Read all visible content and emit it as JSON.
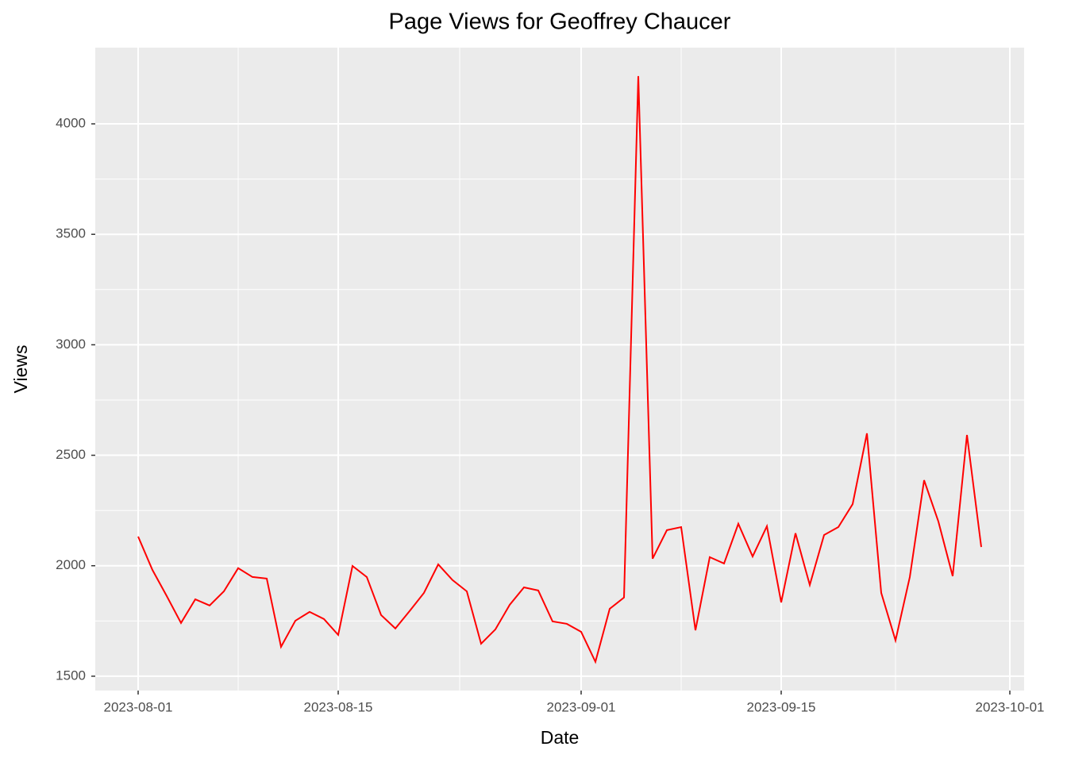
{
  "chart_data": {
    "type": "line",
    "title": "Page Views for Geoffrey Chaucer",
    "x_label": "Date",
    "y_label": "Views",
    "x": [
      "2023-08-01",
      "2023-08-02",
      "2023-08-03",
      "2023-08-04",
      "2023-08-05",
      "2023-08-06",
      "2023-08-07",
      "2023-08-08",
      "2023-08-09",
      "2023-08-10",
      "2023-08-11",
      "2023-08-12",
      "2023-08-13",
      "2023-08-14",
      "2023-08-15",
      "2023-08-16",
      "2023-08-17",
      "2023-08-18",
      "2023-08-19",
      "2023-08-20",
      "2023-08-21",
      "2023-08-22",
      "2023-08-23",
      "2023-08-24",
      "2023-08-25",
      "2023-08-26",
      "2023-08-27",
      "2023-08-28",
      "2023-08-29",
      "2023-08-30",
      "2023-08-31",
      "2023-09-01",
      "2023-09-02",
      "2023-09-03",
      "2023-09-04",
      "2023-09-05",
      "2023-09-06",
      "2023-09-07",
      "2023-09-08",
      "2023-09-09",
      "2023-09-10",
      "2023-09-11",
      "2023-09-12",
      "2023-09-13",
      "2023-09-14",
      "2023-09-15",
      "2023-09-16",
      "2023-09-17",
      "2023-09-18",
      "2023-09-19",
      "2023-09-20",
      "2023-09-21",
      "2023-09-22",
      "2023-09-23",
      "2023-09-24",
      "2023-09-25",
      "2023-09-26",
      "2023-09-27",
      "2023-09-28",
      "2023-09-29"
    ],
    "series": [
      {
        "name": "Views",
        "color": "#ff0000",
        "values": [
          2132,
          1981,
          1863,
          1741,
          1848,
          1820,
          1884,
          1989,
          1949,
          1942,
          1633,
          1751,
          1791,
          1759,
          1687,
          1999,
          1949,
          1777,
          1716,
          1795,
          1877,
          2006,
          1935,
          1884,
          1647,
          1712,
          1823,
          1902,
          1888,
          1748,
          1737,
          1701,
          1565,
          1805,
          1856,
          4216,
          2032,
          2161,
          2175,
          1708,
          2039,
          2010,
          2190,
          2042,
          2179,
          1834,
          2147,
          1913,
          2139,
          2175,
          2279,
          2599,
          1877,
          1662,
          1949,
          2387,
          2200,
          1953,
          2592,
          2085
        ]
      }
    ],
    "xlim": [
      "2023-07-29",
      "2023-10-02"
    ],
    "xticks": [
      "2023-08-01",
      "2023-08-15",
      "2023-09-01",
      "2023-09-15",
      "2023-10-01"
    ],
    "ylim": [
      1435,
      4345
    ],
    "yticks": [
      1500,
      2000,
      2500,
      3000,
      3500,
      4000
    ],
    "grid": true,
    "minor_grid": true
  }
}
